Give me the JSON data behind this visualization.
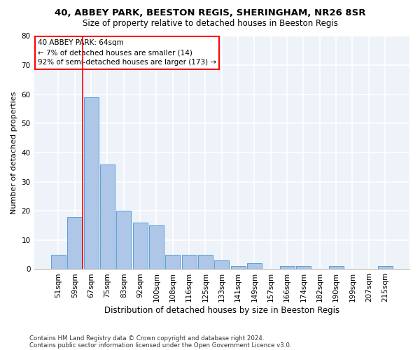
{
  "title1": "40, ABBEY PARK, BEESTON REGIS, SHERINGHAM, NR26 8SR",
  "title2": "Size of property relative to detached houses in Beeston Regis",
  "xlabel": "Distribution of detached houses by size in Beeston Regis",
  "ylabel": "Number of detached properties",
  "footnote1": "Contains HM Land Registry data © Crown copyright and database right 2024.",
  "footnote2": "Contains public sector information licensed under the Open Government Licence v3.0.",
  "categories": [
    "51sqm",
    "59sqm",
    "67sqm",
    "75sqm",
    "83sqm",
    "92sqm",
    "100sqm",
    "108sqm",
    "116sqm",
    "125sqm",
    "133sqm",
    "141sqm",
    "149sqm",
    "157sqm",
    "166sqm",
    "174sqm",
    "182sqm",
    "190sqm",
    "199sqm",
    "207sqm",
    "215sqm"
  ],
  "values": [
    5,
    18,
    59,
    36,
    20,
    16,
    15,
    5,
    5,
    5,
    3,
    1,
    2,
    0,
    1,
    1,
    0,
    1,
    0,
    0,
    1
  ],
  "bar_color": "#aec6e8",
  "bar_edge_color": "#5a9fd4",
  "annotation_line1": "40 ABBEY PARK: 64sqm",
  "annotation_line2": "← 7% of detached houses are smaller (14)",
  "annotation_line3": "92% of semi-detached houses are larger (173) →",
  "annotation_box_color": "white",
  "annotation_box_edge_color": "red",
  "vline_x": 1.5,
  "vline_color": "red",
  "ylim": [
    0,
    80
  ],
  "yticks": [
    0,
    10,
    20,
    30,
    40,
    50,
    60,
    70,
    80
  ],
  "background_color": "#eef2f9",
  "grid_color": "white",
  "title1_fontsize": 9.5,
  "title2_fontsize": 8.5,
  "xlabel_fontsize": 8.5,
  "ylabel_fontsize": 8,
  "tick_fontsize": 7.5,
  "annotation_fontsize": 7.5
}
